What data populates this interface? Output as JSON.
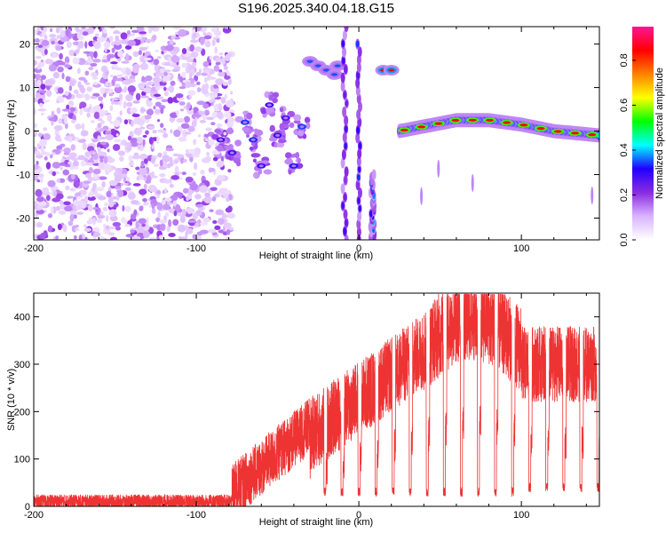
{
  "title": "S196.2025.340.04.18.G15",
  "chart_data": [
    {
      "type": "heatmap",
      "xlabel": "Height of straight line (km)",
      "ylabel": "Frequency (Hz)",
      "xlim": [
        -200,
        148
      ],
      "ylim": [
        -25,
        24
      ],
      "xticks": [
        -200,
        -100,
        0,
        100
      ],
      "yticks": [
        -20,
        -10,
        0,
        10,
        20
      ],
      "colorbar": {
        "label": "Normalized spectral amplitude",
        "ticks": [
          0.0,
          0.2,
          0.4,
          0.6,
          0.8
        ],
        "range": [
          0,
          0.95
        ],
        "colors": [
          "#ffffff",
          "#d9b3ff",
          "#8a2be2",
          "#2000ff",
          "#00ffff",
          "#00ff00",
          "#ffff00",
          "#ff8000",
          "#ff0000",
          "#ff1493"
        ]
      },
      "features": [
        {
          "kind": "noise",
          "x": [
            -200,
            -78
          ],
          "y": [
            -25,
            24
          ],
          "level": 0.15
        },
        {
          "kind": "segments",
          "points": [
            [
              -85,
              -2
            ],
            [
              -78,
              -5
            ],
            [
              -70,
              2
            ],
            [
              -65,
              -2
            ],
            [
              -60,
              -8
            ],
            [
              -55,
              6
            ],
            [
              -50,
              -1
            ],
            [
              -45,
              3
            ],
            [
              -40,
              -8
            ],
            [
              -35,
              1
            ]
          ],
          "level": 0.3
        },
        {
          "kind": "blobs",
          "points": [
            [
              -30,
              16
            ],
            [
              -25,
              15
            ],
            [
              -20,
              14
            ],
            [
              -15,
              13
            ],
            [
              -13,
              15
            ]
          ],
          "level": 0.35
        },
        {
          "kind": "streak",
          "x": [
            -12,
            -5
          ],
          "y": [
            -25,
            24
          ],
          "level": 0.2
        },
        {
          "kind": "streak",
          "x": [
            -2,
            2
          ],
          "y": [
            -25,
            20
          ],
          "level": 0.25
        },
        {
          "kind": "streak",
          "x": [
            5,
            12
          ],
          "y": [
            -25,
            -10
          ],
          "level": 0.3
        },
        {
          "kind": "blobs",
          "points": [
            [
              15,
              14
            ],
            [
              20,
              14
            ]
          ],
          "level": 0.85
        },
        {
          "kind": "track",
          "x": [
            25,
            148
          ],
          "y_at": [
            [
              25,
              0
            ],
            [
              60,
              2.5
            ],
            [
              80,
              2.5
            ],
            [
              100,
              1.5
            ],
            [
              120,
              0
            ],
            [
              148,
              -1
            ]
          ],
          "level": 0.85
        }
      ]
    },
    {
      "type": "line",
      "xlabel": "Height of straight line (km)",
      "ylabel": "SNR (10 * v/v)",
      "xlim": [
        -200,
        148
      ],
      "ylim": [
        0,
        450
      ],
      "xticks": [
        -200,
        -100,
        0,
        100
      ],
      "yticks": [
        0,
        100,
        200,
        300,
        400
      ],
      "color": "#ee3333",
      "segments": [
        {
          "x": [
            -200,
            -78
          ],
          "base": 10,
          "noise": 15
        },
        {
          "x": [
            -78,
            -30
          ],
          "base": 30,
          "rise_to": 170,
          "noise": 60
        },
        {
          "x": [
            -30,
            40
          ],
          "base": 150,
          "rise_to": 330,
          "noise": 80,
          "oscillation_period_km": 10.5,
          "dip_to": 20
        },
        {
          "x": [
            40,
            100
          ],
          "base": 330,
          "peak": 440,
          "noise": 90,
          "oscillation_period_km": 10.5,
          "dip_to": 20
        },
        {
          "x": [
            100,
            148
          ],
          "base": 300,
          "noise": 80,
          "oscillation_period_km": 10.5,
          "dip_to": 30
        }
      ]
    }
  ]
}
